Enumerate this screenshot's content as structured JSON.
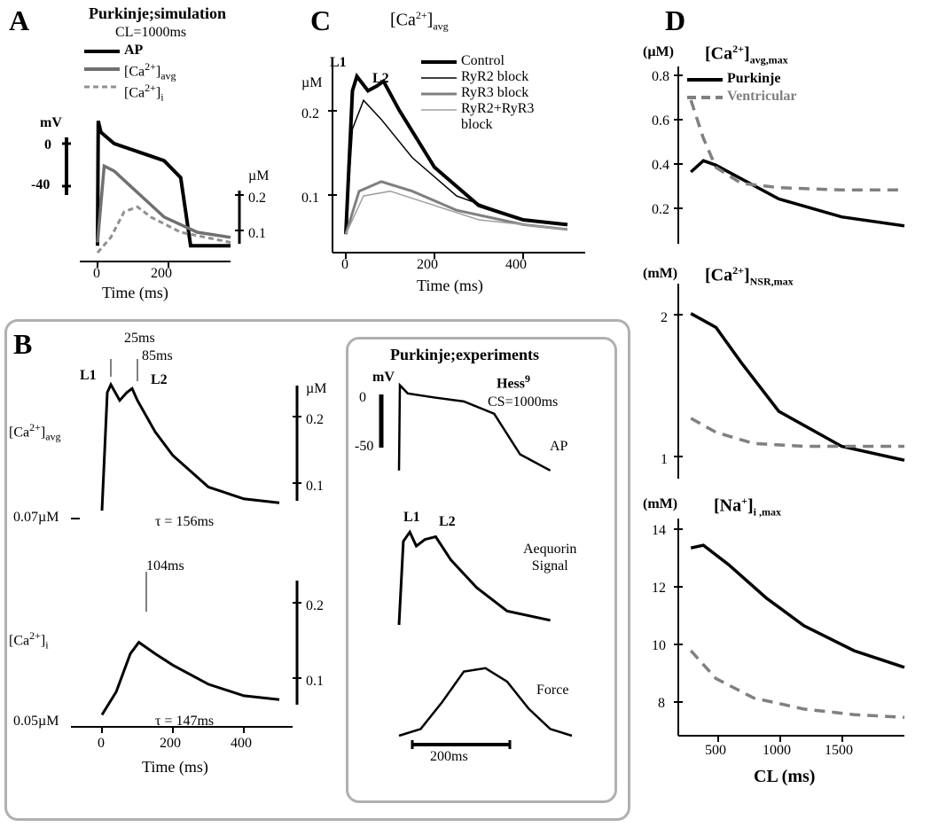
{
  "panelA": {
    "label": "A",
    "title": "Purkinje;simulation",
    "subtitle": "CL=1000ms",
    "legend": {
      "ap": "AP",
      "ca_avg": "[Ca²⁺]ₐᵥ₉",
      "ca_i": "[Ca²⁺]ᵢ"
    },
    "y_left_label": "mV",
    "y_left_ticks": [
      "0",
      "-40"
    ],
    "y_right_label": "µM",
    "y_right_ticks": [
      "0.2",
      "0.1"
    ],
    "x_label": "Time (ms)",
    "x_ticks": [
      "0",
      "200"
    ],
    "colors": {
      "ap": "#000000",
      "ca_avg": "#707070",
      "ca_i": "#909090"
    },
    "ap_curve": [
      [
        0,
        -80
      ],
      [
        2,
        30
      ],
      [
        10,
        20
      ],
      [
        50,
        10
      ],
      [
        100,
        5
      ],
      [
        150,
        0
      ],
      [
        200,
        -5
      ],
      [
        250,
        -20
      ],
      [
        280,
        -80
      ],
      [
        400,
        -80
      ]
    ],
    "ca_avg_curve": [
      [
        0,
        0.07
      ],
      [
        20,
        0.22
      ],
      [
        50,
        0.21
      ],
      [
        100,
        0.18
      ],
      [
        150,
        0.15
      ],
      [
        200,
        0.12
      ],
      [
        300,
        0.09
      ],
      [
        400,
        0.08
      ]
    ],
    "ca_i_curve": [
      [
        0,
        0.05
      ],
      [
        40,
        0.08
      ],
      [
        80,
        0.13
      ],
      [
        120,
        0.14
      ],
      [
        160,
        0.12
      ],
      [
        250,
        0.09
      ],
      [
        400,
        0.07
      ]
    ]
  },
  "panelB": {
    "label": "B",
    "top": {
      "y_label": "[Ca²⁺]ₐᵥ₉",
      "peak1_label": "L1",
      "peak1_time": "25ms",
      "peak2_label": "L2",
      "peak2_time": "85ms",
      "y_right_label": "µM",
      "y_right_ticks": [
        "0.2",
        "0.1"
      ],
      "baseline": "0.07µM",
      "tau": "τ = 156ms",
      "curve": [
        [
          0,
          0.07
        ],
        [
          15,
          0.22
        ],
        [
          25,
          0.23
        ],
        [
          50,
          0.21
        ],
        [
          70,
          0.22
        ],
        [
          85,
          0.225
        ],
        [
          100,
          0.21
        ],
        [
          150,
          0.17
        ],
        [
          200,
          0.14
        ],
        [
          300,
          0.1
        ],
        [
          400,
          0.085
        ],
        [
          500,
          0.08
        ]
      ]
    },
    "bottom": {
      "y_label": "[Ca²⁺]ᵢ",
      "peak_time": "104ms",
      "y_right_ticks": [
        "0.2",
        "0.1"
      ],
      "baseline": "0.05µM",
      "tau": "τ = 147ms",
      "curve": [
        [
          0,
          0.05
        ],
        [
          40,
          0.08
        ],
        [
          80,
          0.13
        ],
        [
          104,
          0.145
        ],
        [
          150,
          0.13
        ],
        [
          200,
          0.115
        ],
        [
          300,
          0.09
        ],
        [
          400,
          0.075
        ],
        [
          500,
          0.07
        ]
      ]
    },
    "x_label": "Time (ms)",
    "x_ticks": [
      "0",
      "200",
      "400"
    ]
  },
  "panelB_exp": {
    "title": "Purkinje;experiments",
    "ref": "Hess⁹",
    "cl": "CS=1000ms",
    "ap_label": "AP",
    "mv_label": "mV",
    "mv_ticks": [
      "0",
      "-50"
    ],
    "aeq_label": "Aequorin Signal",
    "l1": "L1",
    "l2": "L2",
    "force_label": "Force",
    "scale_bar": "200ms",
    "ap_curve": [
      [
        0,
        -80
      ],
      [
        2,
        25
      ],
      [
        20,
        15
      ],
      [
        80,
        10
      ],
      [
        150,
        5
      ],
      [
        220,
        -10
      ],
      [
        280,
        -60
      ],
      [
        350,
        -80
      ]
    ],
    "aeq_curve": [
      [
        0,
        0
      ],
      [
        10,
        0.9
      ],
      [
        25,
        1.0
      ],
      [
        40,
        0.85
      ],
      [
        60,
        0.92
      ],
      [
        85,
        0.95
      ],
      [
        120,
        0.7
      ],
      [
        180,
        0.4
      ],
      [
        250,
        0.15
      ],
      [
        350,
        0.05
      ]
    ],
    "force_curve": [
      [
        0,
        0
      ],
      [
        50,
        0.1
      ],
      [
        100,
        0.5
      ],
      [
        150,
        0.95
      ],
      [
        200,
        1.0
      ],
      [
        250,
        0.8
      ],
      [
        300,
        0.4
      ],
      [
        350,
        0.1
      ],
      [
        400,
        0
      ]
    ]
  },
  "panelC": {
    "label": "C",
    "title": "[Ca²⁺]ₐᵥ₉",
    "y_label": "µM",
    "y_ticks": [
      "0.2",
      "0.1"
    ],
    "x_label": "Time (ms)",
    "x_ticks": [
      "0",
      "200",
      "400"
    ],
    "l1": "L1",
    "l2": "L2",
    "legend": {
      "control": "Control",
      "ryr2": "RyR2 block",
      "ryr3": "RyR3 block",
      "both": "RyR2+RyR3 block"
    },
    "colors": {
      "control": "#000000",
      "ryr2": "#000000",
      "ryr3": "#808080",
      "both": "#a0a0a0"
    },
    "line_widths": {
      "control": 4,
      "ryr2": 1.5,
      "ryr3": 3,
      "both": 1.5
    },
    "control_curve": [
      [
        0,
        0.07
      ],
      [
        15,
        0.22
      ],
      [
        25,
        0.235
      ],
      [
        50,
        0.22
      ],
      [
        70,
        0.225
      ],
      [
        85,
        0.23
      ],
      [
        120,
        0.2
      ],
      [
        200,
        0.14
      ],
      [
        300,
        0.1
      ],
      [
        400,
        0.085
      ],
      [
        500,
        0.08
      ]
    ],
    "ryr2_curve": [
      [
        0,
        0.07
      ],
      [
        15,
        0.18
      ],
      [
        40,
        0.21
      ],
      [
        80,
        0.19
      ],
      [
        150,
        0.15
      ],
      [
        250,
        0.11
      ],
      [
        400,
        0.085
      ],
      [
        500,
        0.08
      ]
    ],
    "ryr3_curve": [
      [
        0,
        0.07
      ],
      [
        30,
        0.115
      ],
      [
        80,
        0.125
      ],
      [
        150,
        0.115
      ],
      [
        250,
        0.095
      ],
      [
        400,
        0.08
      ],
      [
        500,
        0.075
      ]
    ],
    "both_curve": [
      [
        0,
        0.07
      ],
      [
        40,
        0.11
      ],
      [
        100,
        0.115
      ],
      [
        200,
        0.1
      ],
      [
        300,
        0.085
      ],
      [
        500,
        0.075
      ]
    ]
  },
  "panelD": {
    "label": "D",
    "legend": {
      "purkinje": "Purkinje",
      "ventricular": "Ventricular"
    },
    "colors": {
      "purkinje": "#000000",
      "ventricular": "#808080"
    },
    "x_label": "CL (ms)",
    "x_ticks": [
      "500",
      "1000",
      "1500"
    ],
    "sub1": {
      "y_label": "(µM)",
      "title": "[Ca²⁺]ₐᵥ₉,ₘₐₓ",
      "y_ticks": [
        "0.8",
        "0.6",
        "0.4",
        "0.2"
      ],
      "purk": [
        [
          300,
          0.4
        ],
        [
          400,
          0.45
        ],
        [
          500,
          0.43
        ],
        [
          700,
          0.37
        ],
        [
          1000,
          0.28
        ],
        [
          1500,
          0.2
        ],
        [
          2000,
          0.16
        ]
      ],
      "vent": [
        [
          300,
          0.72
        ],
        [
          400,
          0.55
        ],
        [
          500,
          0.42
        ],
        [
          700,
          0.35
        ],
        [
          1000,
          0.33
        ],
        [
          1500,
          0.32
        ],
        [
          2000,
          0.32
        ]
      ]
    },
    "sub2": {
      "y_label": "(mM)",
      "title": "[Ca²⁺]ₙₛᵣ,ₘₐₓ",
      "y_ticks": [
        "2",
        "1"
      ],
      "purk": [
        [
          300,
          2.05
        ],
        [
          500,
          1.95
        ],
        [
          700,
          1.7
        ],
        [
          1000,
          1.35
        ],
        [
          1500,
          1.1
        ],
        [
          2000,
          1.0
        ]
      ],
      "vent": [
        [
          300,
          1.3
        ],
        [
          500,
          1.2
        ],
        [
          800,
          1.12
        ],
        [
          1200,
          1.1
        ],
        [
          2000,
          1.1
        ]
      ]
    },
    "sub3": {
      "y_label": "(mM)",
      "title": "[Na⁺]ᵢ ,ₘₐₓ",
      "y_ticks": [
        "14",
        "12",
        "10",
        "8"
      ],
      "purk": [
        [
          300,
          13.6
        ],
        [
          400,
          13.7
        ],
        [
          600,
          13.0
        ],
        [
          900,
          11.8
        ],
        [
          1200,
          10.8
        ],
        [
          1600,
          9.9
        ],
        [
          2000,
          9.3
        ]
      ],
      "vent": [
        [
          300,
          9.9
        ],
        [
          500,
          8.9
        ],
        [
          800,
          8.2
        ],
        [
          1200,
          7.8
        ],
        [
          1600,
          7.6
        ],
        [
          2000,
          7.5
        ]
      ]
    }
  }
}
